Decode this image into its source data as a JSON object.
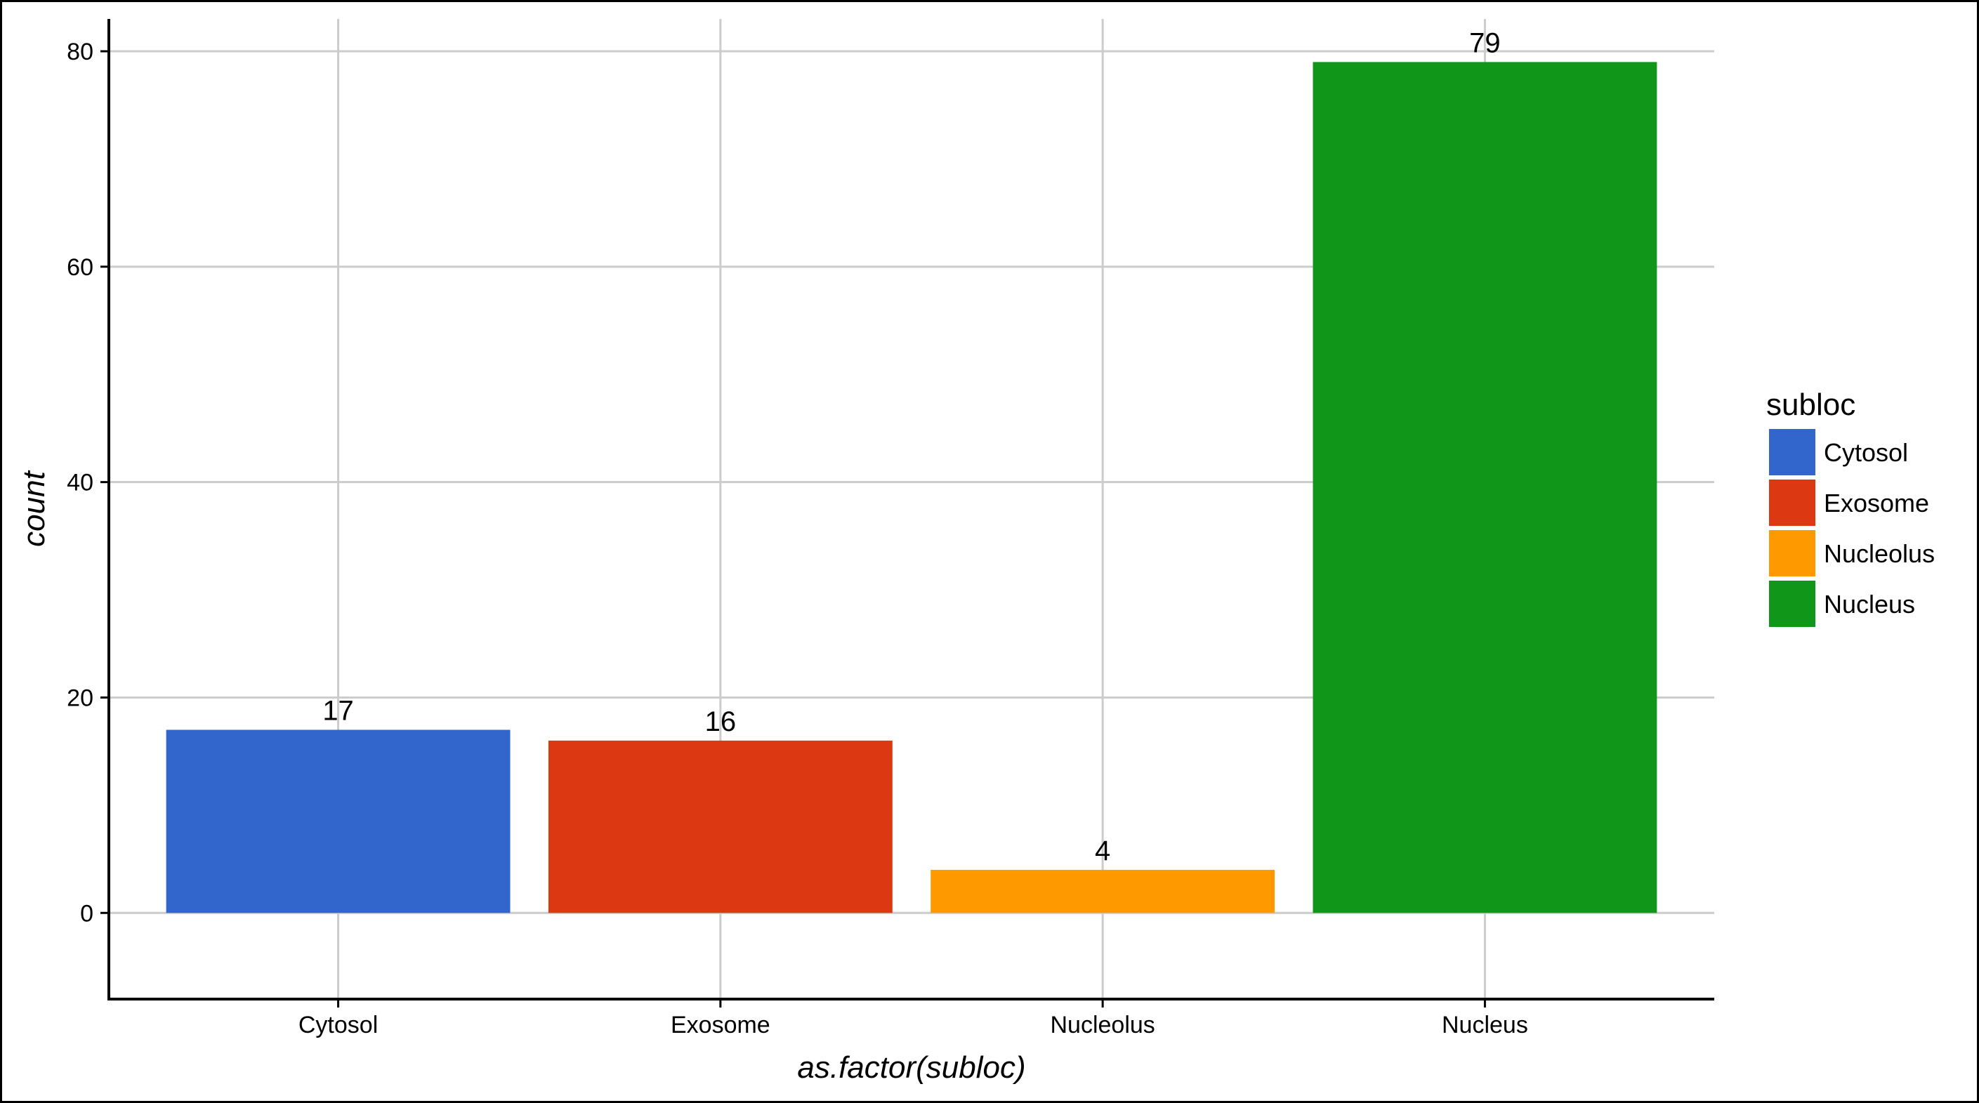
{
  "chart_data": {
    "type": "bar",
    "categories": [
      "Cytosol",
      "Exosome",
      "Nucleolus",
      "Nucleus"
    ],
    "values": [
      17,
      16,
      4,
      79
    ],
    "data_labels": [
      "17",
      "16",
      "4",
      "79"
    ],
    "colors": [
      "#3366cc",
      "#dc3912",
      "#ff9900",
      "#109618"
    ],
    "xlabel": "as.factor(subloc)",
    "ylabel": "count",
    "ylim": [
      -8,
      83
    ],
    "yticks": [
      0,
      20,
      40,
      60,
      80
    ],
    "ytick_labels": [
      "0",
      "20",
      "40",
      "60",
      "80"
    ],
    "grid": true,
    "legend": {
      "title": "subloc",
      "position": "right",
      "entries": [
        "Cytosol",
        "Exosome",
        "Nucleolus",
        "Nucleus"
      ]
    }
  }
}
